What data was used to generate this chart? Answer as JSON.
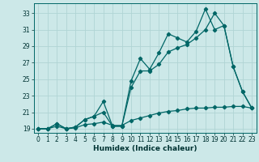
{
  "xlabel": "Humidex (Indice chaleur)",
  "background_color": "#cce8e8",
  "grid_color": "#b0d4d4",
  "line_color": "#006666",
  "xlim": [
    -0.5,
    23.5
  ],
  "ylim": [
    18.5,
    34.2
  ],
  "xticks": [
    0,
    1,
    2,
    3,
    4,
    5,
    6,
    7,
    8,
    9,
    10,
    11,
    12,
    13,
    14,
    15,
    16,
    17,
    18,
    19,
    20,
    21,
    22,
    23
  ],
  "yticks": [
    19,
    21,
    23,
    25,
    27,
    29,
    31,
    33
  ],
  "series1_x": [
    0,
    1,
    2,
    3,
    4,
    5,
    6,
    7,
    8,
    9,
    10,
    11,
    12,
    13,
    14,
    15,
    16,
    17,
    18,
    19,
    20,
    21,
    22,
    23
  ],
  "series1_y": [
    19,
    19,
    19.6,
    19,
    19.2,
    20.1,
    20.5,
    22.3,
    19.3,
    19.3,
    24.8,
    27.5,
    26.2,
    28.2,
    30.5,
    30.0,
    29.5,
    30.8,
    33.5,
    31.0,
    31.5,
    26.5,
    23.5,
    21.5
  ],
  "series2_x": [
    0,
    1,
    2,
    3,
    4,
    5,
    6,
    7,
    8,
    9,
    10,
    11,
    12,
    13,
    14,
    15,
    16,
    17,
    18,
    19,
    20,
    21,
    22,
    23
  ],
  "series2_y": [
    19,
    19,
    19.6,
    19,
    19.2,
    20.1,
    20.5,
    21.0,
    19.3,
    19.3,
    24.0,
    26.0,
    26.0,
    26.8,
    28.3,
    28.8,
    29.2,
    30.0,
    31.0,
    33.0,
    31.5,
    26.5,
    23.5,
    21.5
  ],
  "series3_x": [
    0,
    1,
    2,
    3,
    4,
    5,
    6,
    7,
    8,
    9,
    10,
    11,
    12,
    13,
    14,
    15,
    16,
    17,
    18,
    19,
    20,
    21,
    22,
    23
  ],
  "series3_y": [
    19,
    19,
    19.3,
    19,
    19.1,
    19.5,
    19.6,
    19.8,
    19.4,
    19.4,
    20.0,
    20.3,
    20.6,
    20.9,
    21.1,
    21.2,
    21.4,
    21.5,
    21.5,
    21.6,
    21.6,
    21.7,
    21.7,
    21.5
  ]
}
